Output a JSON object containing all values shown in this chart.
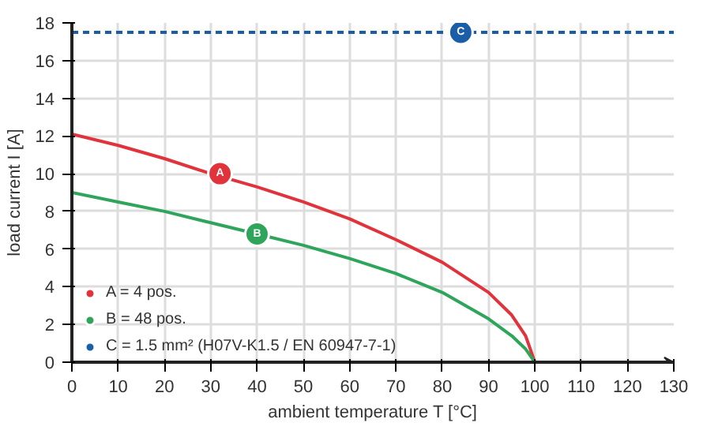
{
  "chart_data": {
    "type": "line",
    "xlabel": "ambient temperature T [°C]",
    "ylabel": "load current I [A]",
    "series": [
      {
        "name": "A = 4 pos.",
        "color": "#e0333c",
        "x": [
          0,
          10,
          20,
          30,
          40,
          50,
          60,
          70,
          80,
          90,
          95,
          98,
          100
        ],
        "values": [
          12.1,
          11.5,
          10.8,
          10.0,
          9.3,
          8.5,
          7.6,
          6.5,
          5.3,
          3.7,
          2.5,
          1.4,
          0
        ]
      },
      {
        "name": "B = 48 pos.",
        "color": "#2ea55a",
        "x": [
          0,
          10,
          20,
          30,
          40,
          50,
          60,
          70,
          80,
          90,
          95,
          98,
          100
        ],
        "values": [
          9.0,
          8.5,
          8.0,
          7.4,
          6.8,
          6.2,
          5.5,
          4.7,
          3.7,
          2.3,
          1.4,
          0.7,
          0
        ]
      },
      {
        "name": "C = 1.5 mm² (H07V-K1.5 / EN 60947-7-1)",
        "color": "#1b5ea8",
        "x": [
          0,
          130
        ],
        "values": [
          17.5,
          17.5
        ],
        "line_style": "dashed"
      }
    ],
    "annotations": [
      {
        "text": "A",
        "x": 32,
        "y": 10.0
      },
      {
        "text": "B",
        "x": 40,
        "y": 6.8
      },
      {
        "text": "C",
        "x": 84,
        "y": 17.5
      }
    ],
    "xlim": [
      0,
      130
    ],
    "ylim": [
      0,
      18
    ],
    "xticks": [
      0,
      10,
      20,
      30,
      40,
      50,
      60,
      70,
      80,
      90,
      100,
      110,
      120,
      130
    ],
    "yticks": [
      0,
      2,
      4,
      6,
      8,
      10,
      12,
      14,
      16,
      18
    ],
    "grid": true,
    "legend": "bottom left",
    "line_style": "solid",
    "marker": "none"
  }
}
